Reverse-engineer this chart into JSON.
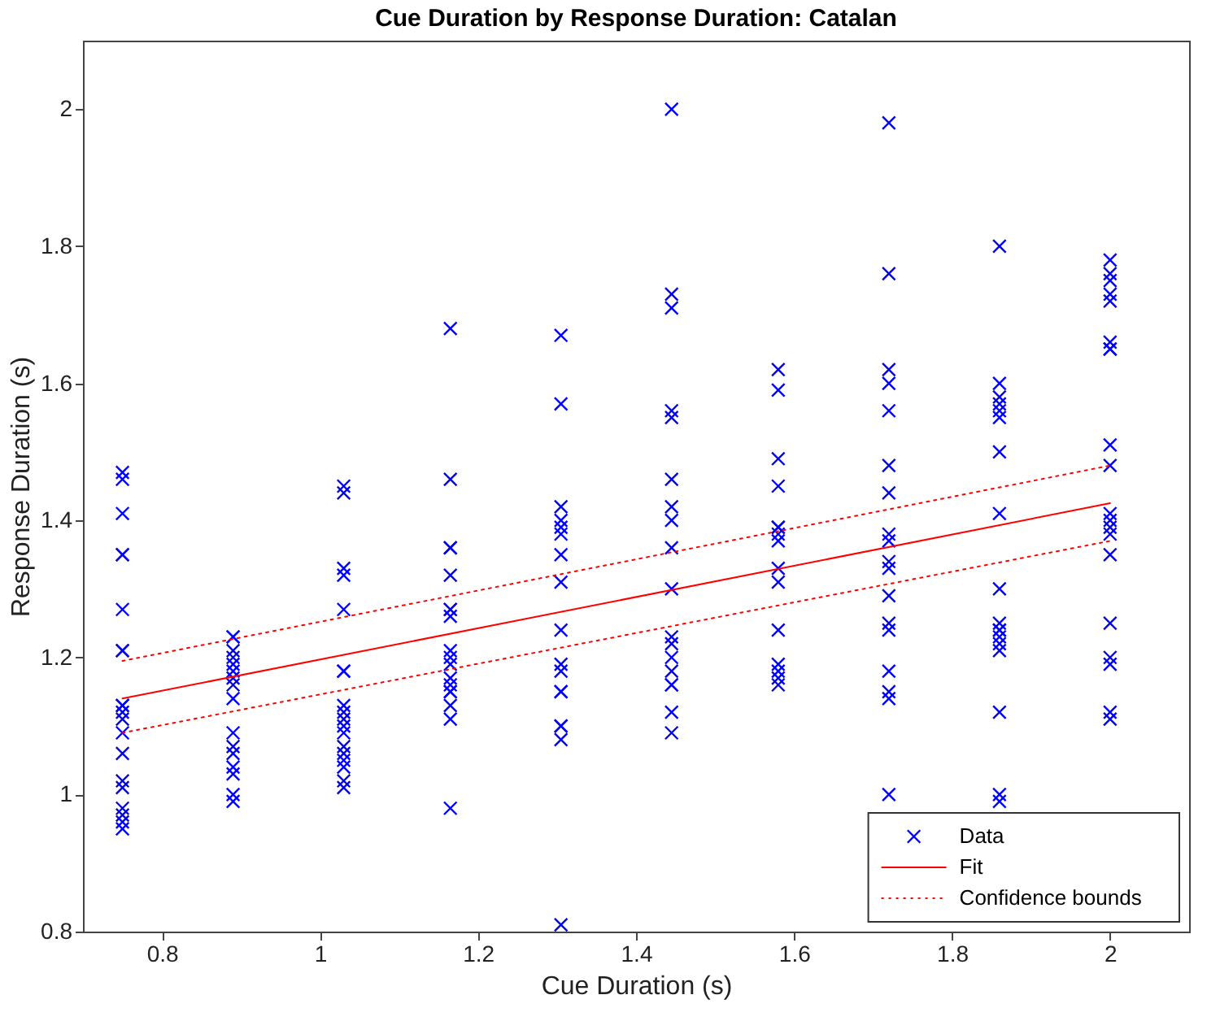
{
  "chart_data": {
    "type": "scatter",
    "title": "Cue Duration by Response Duration: Catalan",
    "xlabel": "Cue Duration (s)",
    "ylabel": "Response Duration (s)",
    "xlim": [
      0.7,
      2.1
    ],
    "ylim": [
      0.8,
      2.1
    ],
    "xticks": [
      0.8,
      1,
      1.2,
      1.4,
      1.6,
      1.8,
      2
    ],
    "yticks": [
      0.8,
      1,
      1.2,
      1.4,
      1.6,
      1.8,
      2
    ],
    "legend": "bottom right",
    "series": [
      {
        "name": "Data",
        "type": "scatter",
        "marker": "cross",
        "color": "#0000ff",
        "x": [
          0.75,
          0.75,
          0.75,
          0.75,
          0.75,
          0.75,
          0.75,
          0.75,
          0.75,
          0.75,
          0.75,
          0.75,
          0.75,
          0.75,
          0.75,
          0.75,
          0.75,
          0.75,
          0.75,
          0.75,
          0.89,
          0.89,
          0.89,
          0.89,
          0.89,
          0.89,
          0.89,
          0.89,
          0.89,
          0.89,
          0.89,
          0.89,
          0.89,
          0.89,
          0.89,
          0.89,
          1.03,
          1.03,
          1.03,
          1.03,
          1.03,
          1.03,
          1.03,
          1.03,
          1.03,
          1.03,
          1.03,
          1.03,
          1.03,
          1.03,
          1.03,
          1.03,
          1.03,
          1.03,
          1.165,
          1.165,
          1.165,
          1.165,
          1.165,
          1.165,
          1.165,
          1.165,
          1.165,
          1.165,
          1.165,
          1.165,
          1.165,
          1.165,
          1.165,
          1.165,
          1.165,
          1.165,
          1.305,
          1.305,
          1.305,
          1.305,
          1.305,
          1.305,
          1.305,
          1.305,
          1.305,
          1.305,
          1.305,
          1.305,
          1.305,
          1.305,
          1.305,
          1.305,
          1.305,
          1.445,
          1.445,
          1.445,
          1.445,
          1.445,
          1.445,
          1.445,
          1.445,
          1.445,
          1.445,
          1.445,
          1.445,
          1.445,
          1.445,
          1.445,
          1.445,
          1.445,
          1.445,
          1.58,
          1.58,
          1.58,
          1.58,
          1.58,
          1.58,
          1.58,
          1.58,
          1.58,
          1.58,
          1.58,
          1.58,
          1.58,
          1.58,
          1.58,
          1.72,
          1.72,
          1.72,
          1.72,
          1.72,
          1.72,
          1.72,
          1.72,
          1.72,
          1.72,
          1.72,
          1.72,
          1.72,
          1.72,
          1.72,
          1.72,
          1.72,
          1.72,
          1.86,
          1.86,
          1.86,
          1.86,
          1.86,
          1.86,
          1.86,
          1.86,
          1.86,
          1.86,
          1.86,
          1.86,
          1.86,
          1.86,
          1.86,
          1.86,
          1.86,
          1.86,
          2,
          2,
          2,
          2,
          2,
          2,
          2,
          2,
          2,
          2,
          2,
          2,
          2,
          2,
          2,
          2,
          2,
          2,
          2,
          2
        ],
        "values": [
          1.47,
          1.46,
          1.41,
          1.35,
          1.35,
          1.27,
          1.21,
          1.21,
          1.13,
          1.13,
          1.12,
          1.11,
          1.09,
          1.06,
          1.02,
          1.01,
          0.98,
          0.97,
          0.96,
          0.95,
          1.23,
          1.23,
          1.21,
          1.2,
          1.19,
          1.18,
          1.17,
          1.16,
          1.14,
          1.09,
          1.07,
          1.06,
          1.04,
          1.03,
          1,
          0.99,
          1.45,
          1.44,
          1.33,
          1.32,
          1.27,
          1.18,
          1.18,
          1.13,
          1.12,
          1.11,
          1.1,
          1.09,
          1.07,
          1.06,
          1.05,
          1.04,
          1.02,
          1.01,
          1.68,
          1.46,
          1.36,
          1.36,
          1.32,
          1.27,
          1.27,
          1.26,
          1.21,
          1.2,
          1.19,
          1.17,
          1.16,
          1.15,
          1.15,
          1.13,
          1.11,
          0.98,
          1.67,
          1.57,
          1.42,
          1.4,
          1.39,
          1.38,
          1.35,
          1.31,
          1.24,
          1.19,
          1.18,
          1.15,
          1.15,
          1.1,
          1.1,
          1.08,
          0.81,
          2,
          1.73,
          1.71,
          1.56,
          1.55,
          1.46,
          1.42,
          1.4,
          1.36,
          1.3,
          1.23,
          1.22,
          1.2,
          1.18,
          1.16,
          1.16,
          1.12,
          1.09,
          1.62,
          1.59,
          1.49,
          1.45,
          1.39,
          1.39,
          1.38,
          1.37,
          1.33,
          1.31,
          1.24,
          1.19,
          1.18,
          1.17,
          1.16,
          1.98,
          1.76,
          1.62,
          1.6,
          1.56,
          1.48,
          1.44,
          1.38,
          1.37,
          1.34,
          1.33,
          1.29,
          1.25,
          1.24,
          1.18,
          1.15,
          1.14,
          1,
          1.8,
          1.6,
          1.58,
          1.57,
          1.56,
          1.55,
          1.5,
          1.41,
          1.3,
          1.25,
          1.24,
          1.24,
          1.23,
          1.22,
          1.21,
          1.12,
          1,
          0.99,
          1.78,
          1.76,
          1.75,
          1.73,
          1.72,
          1.66,
          1.65,
          1.65,
          1.51,
          1.48,
          1.41,
          1.4,
          1.39,
          1.38,
          1.35,
          1.25,
          1.2,
          1.19,
          1.12,
          1.11
        ]
      },
      {
        "name": "Fit",
        "type": "line",
        "line_style": "solid",
        "color": "#ff0000",
        "x": [
          0.75,
          2
        ],
        "values": [
          1.14,
          1.425
        ]
      },
      {
        "name": "Confidence bounds",
        "type": "line",
        "line_style": "dotted",
        "color": "#ff0000",
        "x": [
          0.75,
          2
        ],
        "values": [
          1.195,
          1.48
        ]
      },
      {
        "type": "line",
        "line_style": "dotted",
        "color": "#ff0000",
        "x": [
          0.75,
          2
        ],
        "values": [
          1.09,
          1.37
        ]
      }
    ]
  }
}
